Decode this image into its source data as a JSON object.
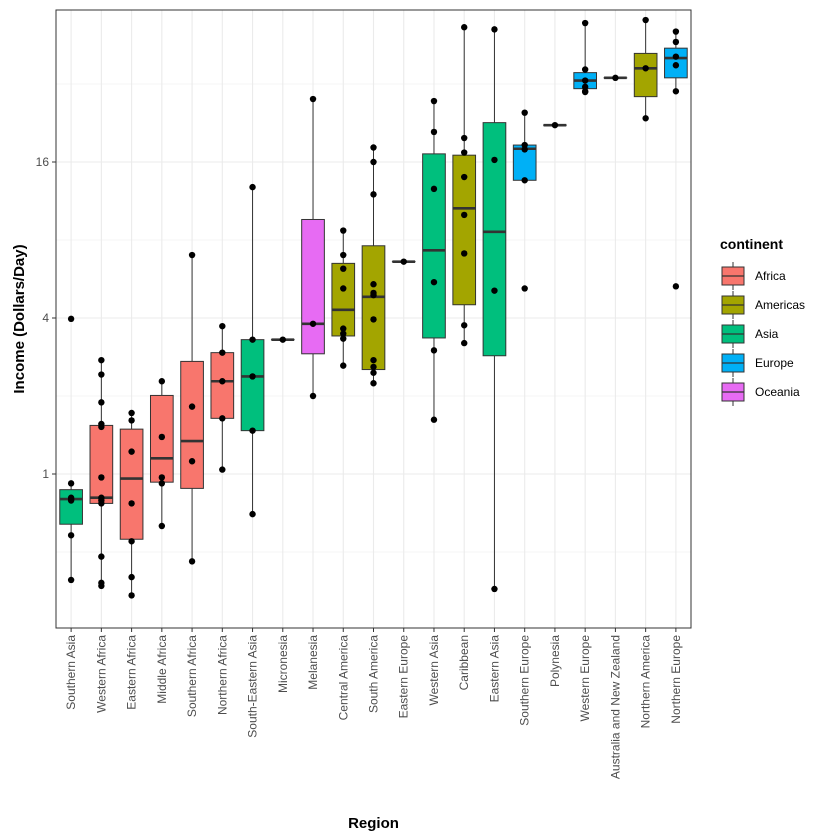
{
  "chart_data": {
    "type": "boxplot",
    "title": "",
    "xlabel": "Region",
    "ylabel": "Income (Dollars/Day)",
    "yscale": "log2",
    "ylim": [
      0.25,
      45
    ],
    "yticks": [
      1,
      4,
      16
    ],
    "ytick_labels": [
      "1",
      "4",
      "16"
    ],
    "grid": true,
    "legend": {
      "title": "continent",
      "placement": "right",
      "entries": [
        {
          "name": "Africa",
          "color": "#F8766D"
        },
        {
          "name": "Americas",
          "color": "#A3A500"
        },
        {
          "name": "Asia",
          "color": "#00BF7D"
        },
        {
          "name": "Europe",
          "color": "#00B0F6"
        },
        {
          "name": "Oceania",
          "color": "#E76BF3"
        }
      ]
    },
    "categories": [
      "Southern Asia",
      "Western Africa",
      "Eastern Africa",
      "Middle Africa",
      "Southern Africa",
      "Northern Africa",
      "South-Eastern Asia",
      "Micronesia",
      "Melanesia",
      "Central America",
      "South America",
      "Eastern Europe",
      "Western Asia",
      "Caribbean",
      "Eastern Asia",
      "Southern Europe",
      "Polynesia",
      "Western Europe",
      "Australia and New Zealand",
      "Northern America",
      "Northern Europe"
    ],
    "series": [
      {
        "region": "Southern Asia",
        "continent": "Asia",
        "q1": 0.64,
        "median": 0.8,
        "q3": 0.87,
        "whisker_low": 0.39,
        "whisker_high": 0.92,
        "points": [
          0.92,
          0.81,
          0.8,
          0.79,
          0.58,
          0.39,
          3.97
        ]
      },
      {
        "region": "Western Africa",
        "continent": "Africa",
        "q1": 0.77,
        "median": 0.81,
        "q3": 1.54,
        "whisker_low": 0.37,
        "whisker_high": 2.75,
        "points": [
          2.75,
          2.42,
          1.89,
          1.56,
          1.52,
          0.97,
          0.81,
          0.79,
          0.77,
          0.48,
          0.38,
          0.37
        ]
      },
      {
        "region": "Eastern Africa",
        "continent": "Africa",
        "q1": 0.56,
        "median": 0.96,
        "q3": 1.49,
        "whisker_low": 0.34,
        "whisker_high": 1.72,
        "points": [
          1.72,
          1.61,
          1.22,
          0.77,
          0.55,
          0.4,
          0.34
        ]
      },
      {
        "region": "Middle Africa",
        "continent": "Africa",
        "q1": 0.93,
        "median": 1.15,
        "q3": 2.01,
        "whisker_low": 0.63,
        "whisker_high": 2.28,
        "points": [
          2.28,
          1.39,
          0.97,
          0.92,
          0.63
        ]
      },
      {
        "region": "Southern Africa",
        "continent": "Africa",
        "q1": 0.88,
        "median": 1.34,
        "q3": 2.72,
        "whisker_low": 0.46,
        "whisker_high": 7.0,
        "points": [
          7.0,
          1.82,
          1.12,
          0.46
        ]
      },
      {
        "region": "Northern Africa",
        "continent": "Africa",
        "q1": 1.64,
        "median": 2.28,
        "q3": 2.94,
        "whisker_low": 1.04,
        "whisker_high": 3.72,
        "points": [
          3.72,
          2.94,
          2.28,
          1.64,
          1.04
        ]
      },
      {
        "region": "South-Eastern Asia",
        "continent": "Asia",
        "q1": 1.47,
        "median": 2.38,
        "q3": 3.3,
        "whisker_low": 0.7,
        "whisker_high": 12.8,
        "points": [
          12.8,
          3.3,
          2.38,
          1.47,
          0.7
        ]
      },
      {
        "region": "Micronesia",
        "continent": "Oceania",
        "q1": 3.3,
        "median": 3.3,
        "q3": 3.3,
        "whisker_low": 3.3,
        "whisker_high": 3.3,
        "points": [
          3.3
        ]
      },
      {
        "region": "Melanesia",
        "continent": "Oceania",
        "q1": 2.91,
        "median": 3.8,
        "q3": 9.6,
        "whisker_low": 2.0,
        "whisker_high": 28.0,
        "points": [
          28.0,
          3.8,
          2.0
        ]
      },
      {
        "region": "Central America",
        "continent": "Americas",
        "q1": 3.41,
        "median": 4.3,
        "q3": 6.5,
        "whisker_low": 2.62,
        "whisker_high": 8.7,
        "points": [
          8.7,
          7.0,
          6.2,
          5.2,
          3.64,
          3.48,
          3.33,
          2.62
        ]
      },
      {
        "region": "South America",
        "continent": "Americas",
        "q1": 2.53,
        "median": 4.83,
        "q3": 7.6,
        "whisker_low": 2.24,
        "whisker_high": 18.2,
        "points": [
          18.2,
          16.0,
          12.0,
          5.4,
          5.0,
          4.9,
          3.95,
          2.75,
          2.59,
          2.46,
          2.24
        ]
      },
      {
        "region": "Eastern Europe",
        "continent": "Europe",
        "q1": 6.6,
        "median": 6.6,
        "q3": 6.6,
        "whisker_low": 6.6,
        "whisker_high": 6.6,
        "points": [
          6.6
        ]
      },
      {
        "region": "Western Asia",
        "continent": "Asia",
        "q1": 3.35,
        "median": 7.3,
        "q3": 17.2,
        "whisker_low": 1.62,
        "whisker_high": 27.5,
        "points": [
          27.5,
          20.9,
          12.6,
          5.5,
          3.0,
          1.62
        ]
      },
      {
        "region": "Caribbean",
        "continent": "Americas",
        "q1": 4.5,
        "median": 10.6,
        "q3": 17.0,
        "whisker_low": 3.2,
        "whisker_high": 53.0,
        "points": [
          53.0,
          19.8,
          17.4,
          14.0,
          10.0,
          7.1,
          3.75,
          3.2
        ]
      },
      {
        "region": "Eastern Asia",
        "continent": "Asia",
        "q1": 2.86,
        "median": 8.6,
        "q3": 22.7,
        "whisker_low": 0.36,
        "whisker_high": 52.0,
        "points": [
          52.0,
          16.3,
          5.1,
          0.36
        ]
      },
      {
        "region": "Southern Europe",
        "continent": "Europe",
        "q1": 13.6,
        "median": 18.0,
        "q3": 18.6,
        "whisker_low": 13.6,
        "whisker_high": 24.8,
        "points": [
          24.8,
          18.6,
          17.9,
          13.6,
          5.2
        ]
      },
      {
        "region": "Polynesia",
        "continent": "Oceania",
        "q1": 22.2,
        "median": 22.2,
        "q3": 22.2,
        "whisker_low": 22.2,
        "whisker_high": 22.2,
        "points": [
          22.2
        ]
      },
      {
        "region": "Western Europe",
        "continent": "Europe",
        "q1": 30.7,
        "median": 33.0,
        "q3": 35.4,
        "whisker_low": 29.8,
        "whisker_high": 55.0,
        "points": [
          55.0,
          36.4,
          33.0,
          31.2,
          30.0,
          29.8
        ]
      },
      {
        "region": "Australia and New Zealand",
        "continent": "Oceania",
        "q1": 33.8,
        "median": 33.8,
        "q3": 33.8,
        "whisker_low": 33.8,
        "whisker_high": 33.8,
        "points": [
          33.8
        ]
      },
      {
        "region": "Northern America",
        "continent": "Americas",
        "q1": 28.6,
        "median": 36.8,
        "q3": 42.0,
        "whisker_low": 23.6,
        "whisker_high": 56.5,
        "points": [
          56.5,
          36.8,
          23.6
        ]
      },
      {
        "region": "Northern Europe",
        "continent": "Europe",
        "q1": 33.8,
        "median": 40.3,
        "q3": 44.0,
        "whisker_low": 30.0,
        "whisker_high": 51.0,
        "points": [
          51.0,
          46.5,
          40.8,
          37.8,
          30.0,
          5.3
        ]
      }
    ]
  }
}
